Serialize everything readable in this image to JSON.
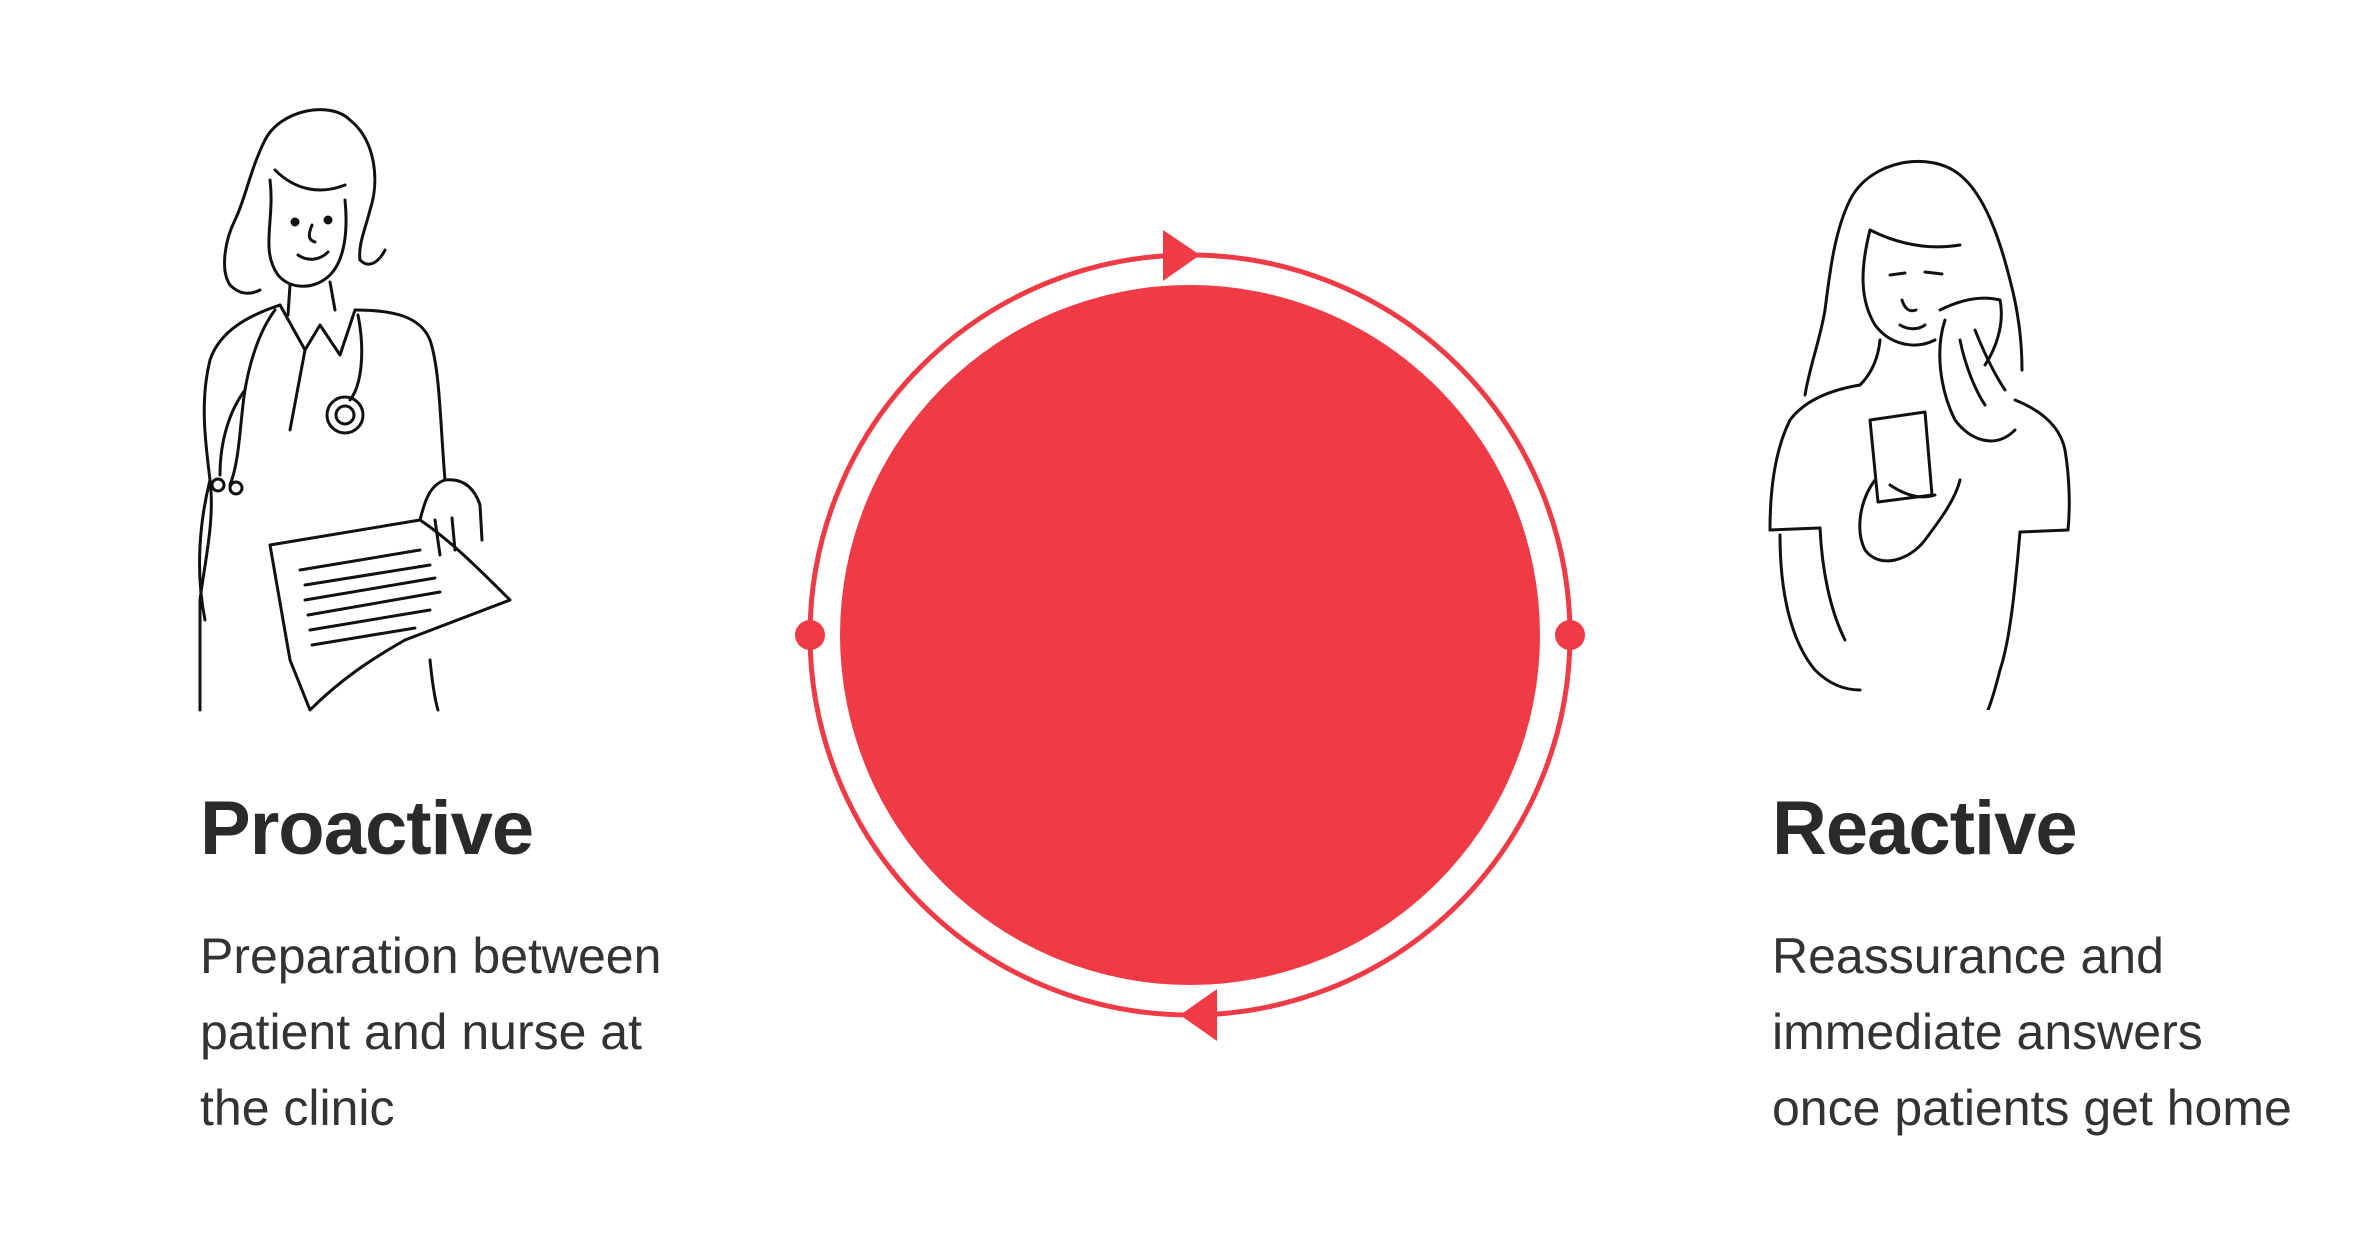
{
  "colors": {
    "accent": "#ef3b45",
    "text": "#2b2b2b",
    "line_art": "#111111"
  },
  "left": {
    "title": "Proactive",
    "description": "Preparation between\npatient and nurse at\nthe clinic",
    "illustration_icon": "nurse-with-clipboard-icon"
  },
  "right": {
    "title": "Reactive",
    "description": "Reassurance and\nimmediate answers\nonce patients get home",
    "illustration_icon": "patient-with-phone-icon"
  },
  "center": {
    "icon": "cycle-ring-icon"
  }
}
